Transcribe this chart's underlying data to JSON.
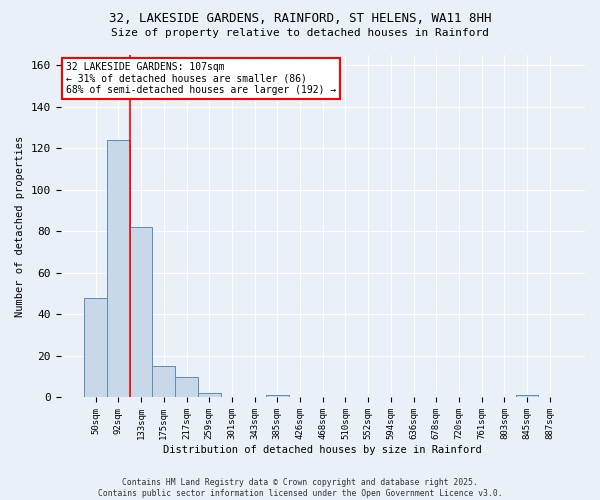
{
  "title_line1": "32, LAKESIDE GARDENS, RAINFORD, ST HELENS, WA11 8HH",
  "title_line2": "Size of property relative to detached houses in Rainford",
  "xlabel": "Distribution of detached houses by size in Rainford",
  "ylabel": "Number of detached properties",
  "bar_color": "#c8d8e8",
  "bar_edge_color": "#5b8db8",
  "categories": [
    "50sqm",
    "92sqm",
    "133sqm",
    "175sqm",
    "217sqm",
    "259sqm",
    "301sqm",
    "343sqm",
    "385sqm",
    "426sqm",
    "468sqm",
    "510sqm",
    "552sqm",
    "594sqm",
    "636sqm",
    "678sqm",
    "720sqm",
    "761sqm",
    "803sqm",
    "845sqm",
    "887sqm"
  ],
  "values": [
    48,
    124,
    82,
    15,
    10,
    2,
    0,
    0,
    1,
    0,
    0,
    0,
    0,
    0,
    0,
    0,
    0,
    0,
    0,
    1,
    0
  ],
  "ylim": [
    0,
    165
  ],
  "yticks": [
    0,
    20,
    40,
    60,
    80,
    100,
    120,
    140,
    160
  ],
  "red_line_x": 1.5,
  "annotation_line1": "32 LAKESIDE GARDENS: 107sqm",
  "annotation_line2": "← 31% of detached houses are smaller (86)",
  "annotation_line3": "68% of semi-detached houses are larger (192) →",
  "footer_text": "Contains HM Land Registry data © Crown copyright and database right 2025.\nContains public sector information licensed under the Open Government Licence v3.0.",
  "background_color": "#eaf0f8",
  "grid_color": "white"
}
